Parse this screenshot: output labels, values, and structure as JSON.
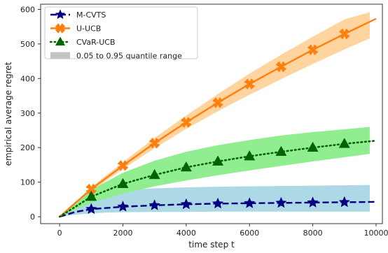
{
  "chart_data": {
    "type": "line",
    "xlabel": "time step t",
    "ylabel": "empirical average regret",
    "xlim": [
      -600,
      10200
    ],
    "ylim": [
      -20,
      615
    ],
    "xticks": [
      0,
      2000,
      4000,
      6000,
      8000,
      10000
    ],
    "yticks": [
      0,
      100,
      200,
      300,
      400,
      500,
      600
    ],
    "grid": false,
    "legend_position": "top-left",
    "band_legend_label": "0.05 to 0.95 quantile range",
    "band_legend_color": "#c4c4c8",
    "series": [
      {
        "name": "M-CVTS",
        "color": "#000080",
        "line_style": "dashed",
        "marker": "star",
        "x": [
          0,
          500,
          1000,
          2000,
          3000,
          4000,
          5000,
          6000,
          7000,
          8000,
          9000,
          10000
        ],
        "y": [
          0,
          14,
          22,
          29,
          33,
          36,
          38,
          39,
          40,
          41,
          42,
          43
        ],
        "marker_x": [
          1000,
          2000,
          3000,
          4000,
          5000,
          6000,
          7000,
          8000,
          9000
        ],
        "marker_y": [
          22,
          29,
          33,
          36,
          38,
          39,
          40,
          41,
          42
        ],
        "band_color": "#add8e6",
        "band_x": [
          0,
          500,
          1000,
          1500,
          2000,
          3000,
          4000,
          5000,
          6000,
          7000,
          8000,
          9000,
          9800
        ],
        "band_low": [
          0,
          6,
          10,
          12,
          13,
          14,
          14,
          15,
          15,
          15,
          15,
          15,
          15
        ],
        "band_high": [
          0,
          45,
          62,
          72,
          77,
          82,
          85,
          87,
          88,
          89,
          90,
          91,
          92
        ]
      },
      {
        "name": "U-UCB",
        "color": "#ff7f0e",
        "line_style": "solid",
        "marker": "X",
        "x": [
          0,
          1000,
          2000,
          3000,
          4000,
          5000,
          6000,
          7000,
          8000,
          9000,
          10000
        ],
        "y": [
          0,
          80,
          148,
          213,
          273,
          330,
          384,
          434,
          483,
          529,
          573
        ],
        "marker_x": [
          1000,
          2000,
          3000,
          4000,
          5000,
          6000,
          7000,
          8000,
          9000
        ],
        "marker_y": [
          80,
          148,
          213,
          273,
          330,
          384,
          434,
          483,
          529
        ],
        "band_color": "#ffd49e",
        "band_x": [
          0,
          1000,
          2000,
          3000,
          4000,
          5000,
          6000,
          7000,
          8000,
          9000,
          9800
        ],
        "band_low": [
          0,
          73,
          138,
          198,
          254,
          305,
          353,
          398,
          442,
          484,
          516
        ],
        "band_high": [
          0,
          85,
          158,
          228,
          293,
          355,
          414,
          469,
          521,
          571,
          592
        ]
      },
      {
        "name": "CVaR-UCB",
        "color": "#006400",
        "line_style": "dotted",
        "marker": "triangle",
        "x": [
          0,
          1000,
          2000,
          3000,
          4000,
          5000,
          6000,
          7000,
          8000,
          9000,
          10000
        ],
        "y": [
          0,
          58,
          95,
          121,
          143,
          160,
          175,
          188,
          200,
          211,
          220
        ],
        "marker_x": [
          1000,
          2000,
          3000,
          4000,
          5000,
          6000,
          7000,
          8000,
          9000
        ],
        "marker_y": [
          58,
          95,
          121,
          143,
          160,
          175,
          188,
          200,
          211
        ],
        "band_color": "#90ee90",
        "band_x": [
          0,
          1000,
          2000,
          3000,
          4000,
          5000,
          6000,
          7000,
          8000,
          9000,
          9800
        ],
        "band_low": [
          0,
          40,
          67,
          88,
          105,
          120,
          134,
          147,
          160,
          172,
          182
        ],
        "band_high": [
          0,
          78,
          127,
          162,
          188,
          207,
          222,
          235,
          245,
          253,
          260
        ]
      }
    ]
  }
}
